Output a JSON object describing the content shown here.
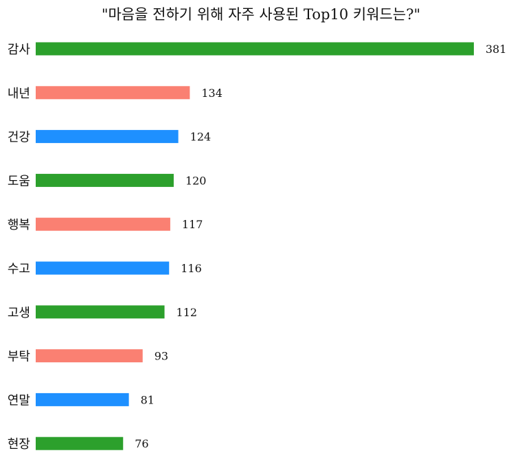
{
  "chart_data": {
    "type": "bar",
    "orientation": "horizontal",
    "title": "\"마음을 전하기 위해 자주 사용된 Top10 키워드는?\"",
    "xlabel": "",
    "ylabel": "",
    "categories": [
      "감사",
      "내년",
      "건강",
      "도움",
      "행복",
      "수고",
      "고생",
      "부탁",
      "연말",
      "현장"
    ],
    "values": [
      381,
      134,
      124,
      120,
      117,
      116,
      112,
      93,
      81,
      76
    ],
    "colors": [
      "#2ca02c",
      "#fa8072",
      "#1e90ff",
      "#2ca02c",
      "#fa8072",
      "#1e90ff",
      "#2ca02c",
      "#fa8072",
      "#1e90ff",
      "#2ca02c"
    ],
    "xlim": [
      0,
      381
    ],
    "grid": false,
    "data_labels": true
  }
}
